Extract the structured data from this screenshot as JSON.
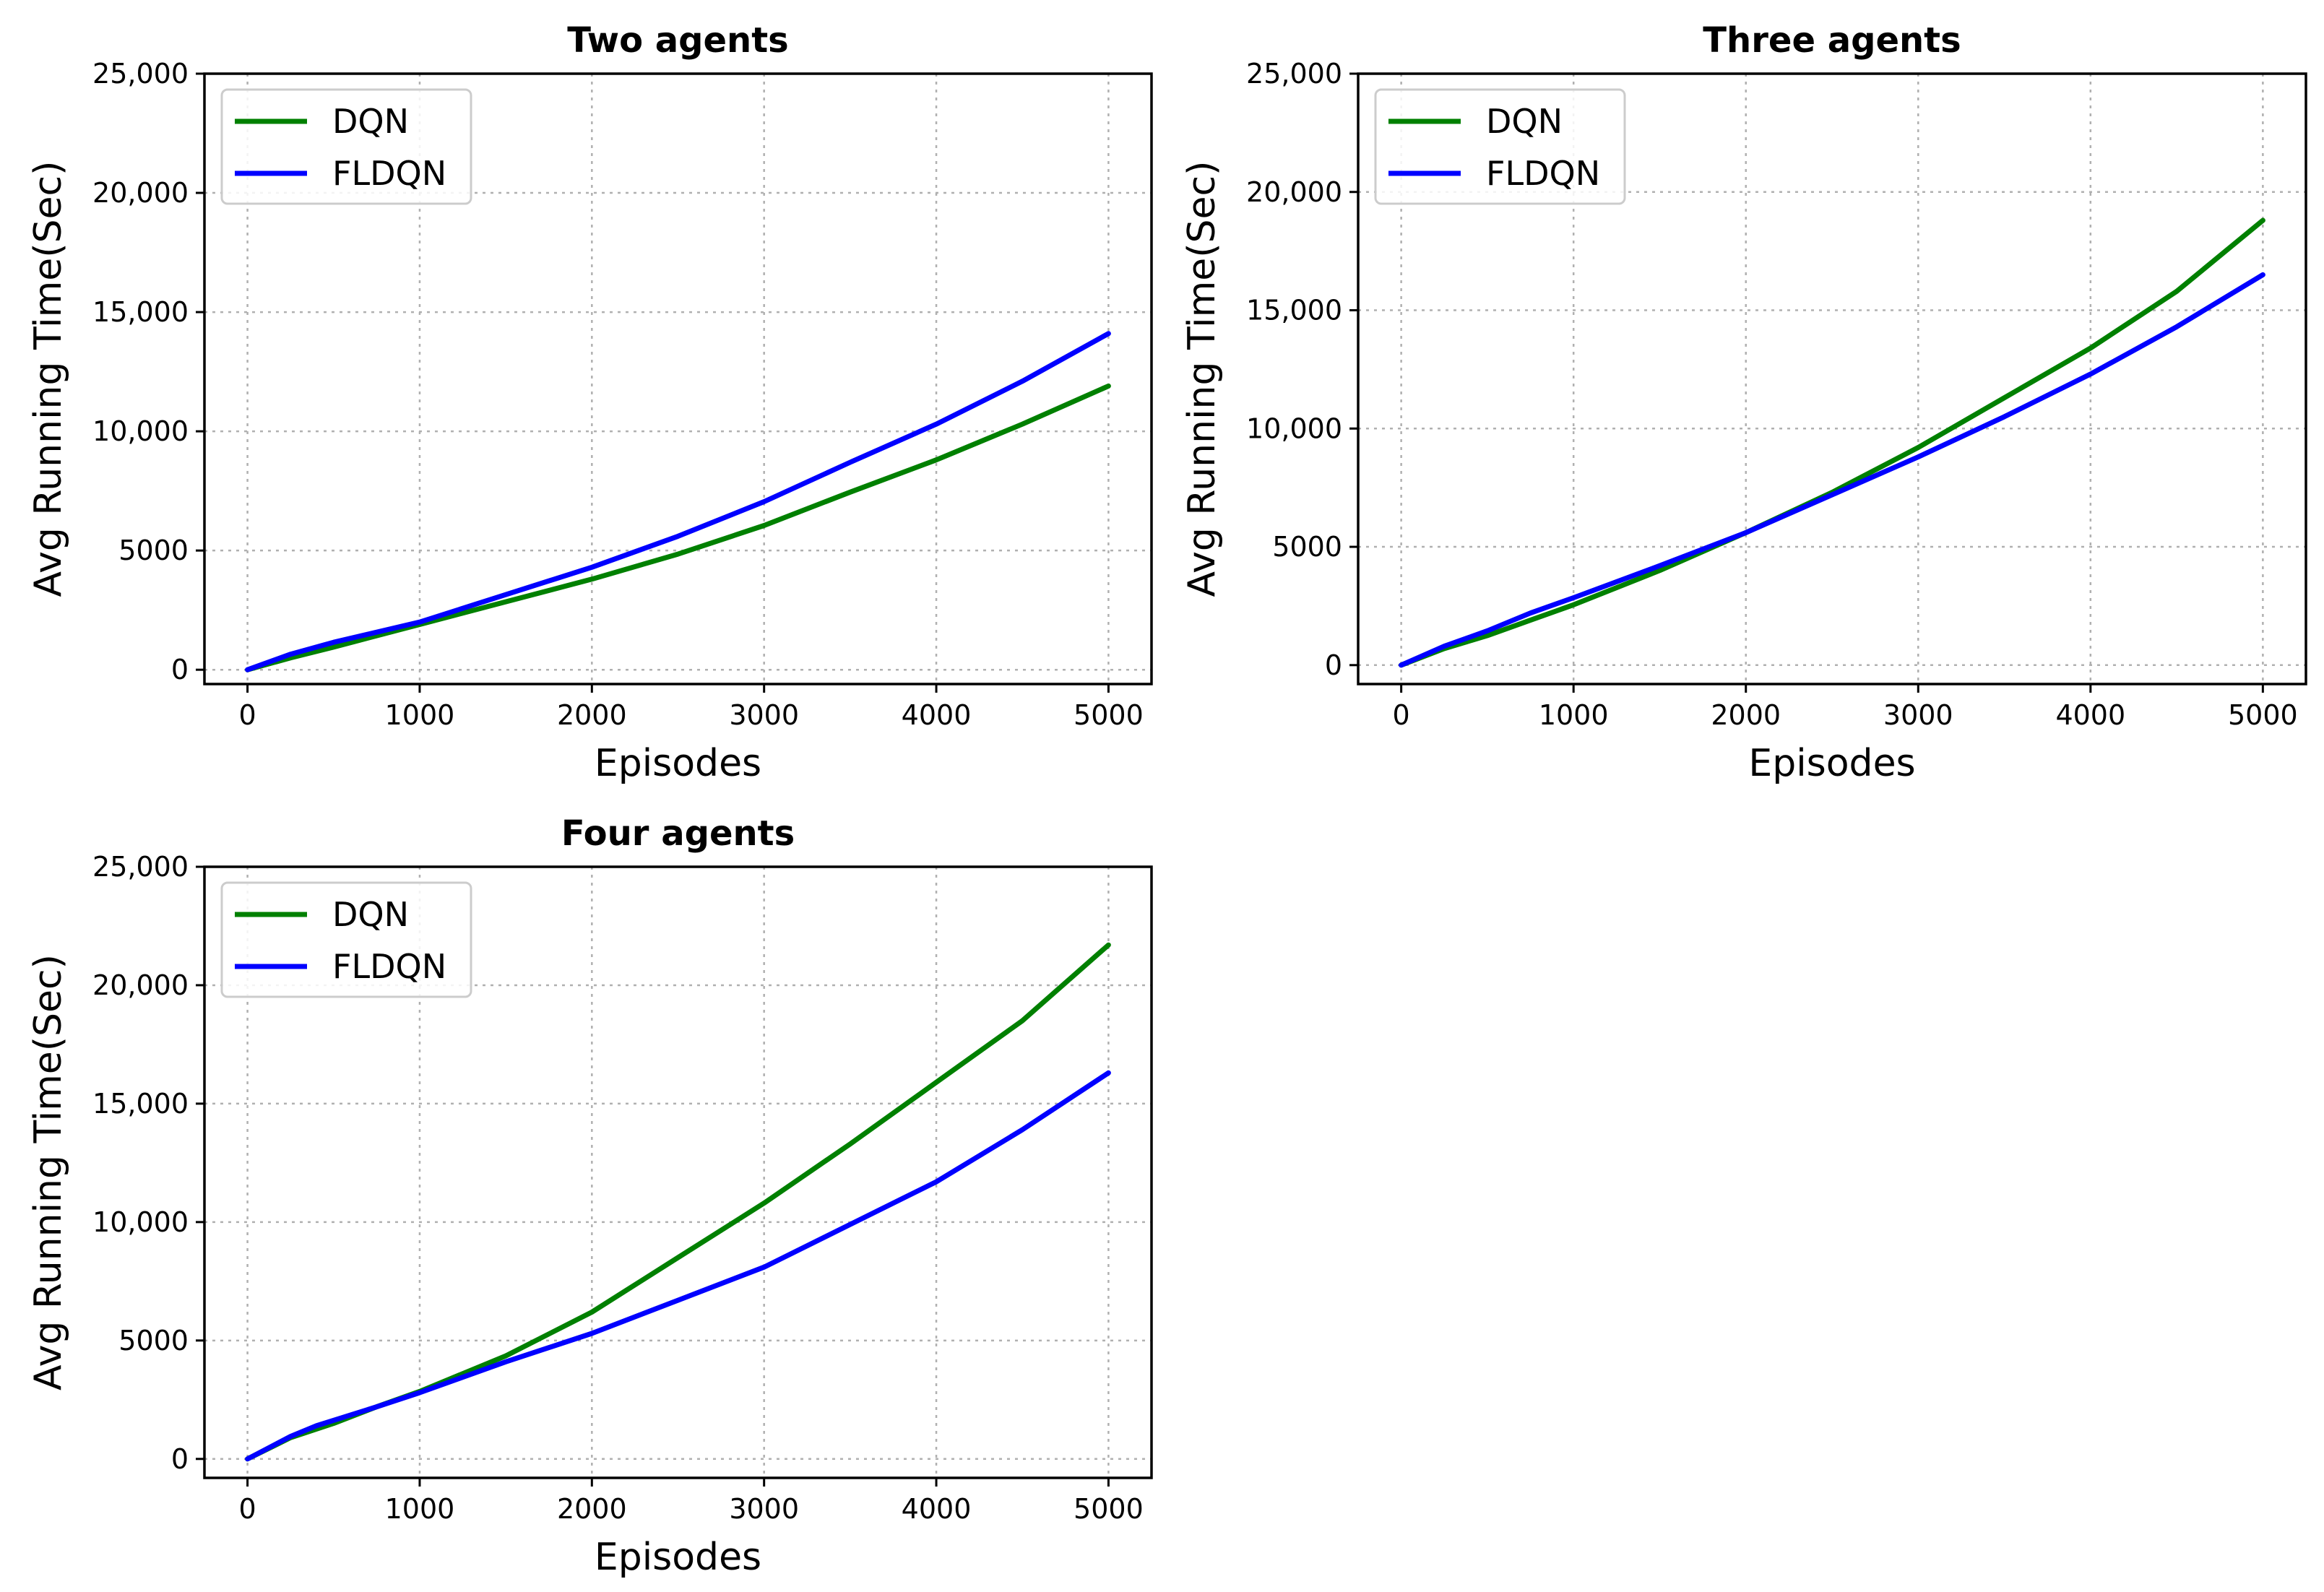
{
  "colors": {
    "DQN": "#008000",
    "FLDQN": "#0000ff"
  },
  "chart_data": [
    {
      "type": "line",
      "title": "Two agents",
      "xlabel": "Episodes",
      "ylabel": "Avg Running Time(Sec)",
      "xlim": [
        -250,
        5250
      ],
      "ylim": [
        -600,
        25000
      ],
      "xticks": [
        0,
        1000,
        2000,
        3000,
        4000,
        5000
      ],
      "xtick_labels": [
        "0",
        "1000",
        "2000",
        "3000",
        "4000",
        "5000"
      ],
      "yticks": [
        0,
        5000,
        10000,
        15000,
        20000,
        25000
      ],
      "ytick_labels": [
        "0",
        "5000",
        "10,000",
        "15,000",
        "20,000",
        "25,000"
      ],
      "grid": true,
      "legend": "top-left",
      "series": [
        {
          "name": "DQN",
          "x": [
            0,
            250,
            500,
            1000,
            1500,
            2000,
            2500,
            3000,
            3500,
            4000,
            4500,
            5000
          ],
          "values": [
            0,
            500,
            950,
            1900,
            2850,
            3800,
            4850,
            6050,
            7450,
            8800,
            10300,
            11900
          ]
        },
        {
          "name": "FLDQN",
          "x": [
            0,
            250,
            500,
            1000,
            1500,
            2000,
            2500,
            3000,
            3500,
            4000,
            4500,
            5000
          ],
          "values": [
            0,
            650,
            1150,
            2000,
            3150,
            4300,
            5600,
            7050,
            8700,
            10300,
            12100,
            14100
          ]
        }
      ]
    },
    {
      "type": "line",
      "title": "Three agents",
      "xlabel": "Episodes",
      "ylabel": "Avg Running Time(Sec)",
      "xlim": [
        -250,
        5250
      ],
      "ylim": [
        -800,
        25000
      ],
      "xticks": [
        0,
        1000,
        2000,
        3000,
        4000,
        5000
      ],
      "xtick_labels": [
        "0",
        "1000",
        "2000",
        "3000",
        "4000",
        "5000"
      ],
      "yticks": [
        0,
        5000,
        10000,
        15000,
        20000,
        25000
      ],
      "ytick_labels": [
        "0",
        "5000",
        "10,000",
        "15,000",
        "20,000",
        "25,000"
      ],
      "grid": true,
      "legend": "top-left",
      "series": [
        {
          "name": "DQN",
          "x": [
            0,
            250,
            500,
            750,
            1000,
            1500,
            2000,
            2500,
            3000,
            3500,
            4000,
            4500,
            5000
          ],
          "values": [
            0,
            700,
            1250,
            1900,
            2550,
            4000,
            5600,
            7300,
            9200,
            11300,
            13400,
            15800,
            18800
          ]
        },
        {
          "name": "FLDQN",
          "x": [
            0,
            250,
            500,
            750,
            1000,
            1500,
            2000,
            2500,
            3000,
            3500,
            4000,
            4500,
            5000
          ],
          "values": [
            0,
            800,
            1450,
            2200,
            2850,
            4200,
            5600,
            7200,
            8800,
            10500,
            12300,
            14300,
            16500
          ]
        }
      ]
    },
    {
      "type": "line",
      "title": "Four agents",
      "xlabel": "Episodes",
      "ylabel": "Avg Running Time(Sec)",
      "xlim": [
        -250,
        5250
      ],
      "ylim": [
        -800,
        25000
      ],
      "xticks": [
        0,
        1000,
        2000,
        3000,
        4000,
        5000
      ],
      "xtick_labels": [
        "0",
        "1000",
        "2000",
        "3000",
        "4000",
        "5000"
      ],
      "yticks": [
        0,
        5000,
        10000,
        15000,
        20000,
        25000
      ],
      "ytick_labels": [
        "0",
        "5000",
        "10,000",
        "15,000",
        "20,000",
        "25,000"
      ],
      "grid": true,
      "legend": "top-left",
      "series": [
        {
          "name": "DQN",
          "x": [
            0,
            250,
            500,
            750,
            1000,
            1500,
            2000,
            2500,
            3000,
            3500,
            4000,
            4500,
            5000
          ],
          "values": [
            0,
            900,
            1500,
            2200,
            2850,
            4350,
            6200,
            8500,
            10800,
            13300,
            15900,
            18500,
            21700
          ]
        },
        {
          "name": "FLDQN",
          "x": [
            0,
            250,
            400,
            750,
            1000,
            1500,
            2000,
            2500,
            3000,
            3500,
            4000,
            4500,
            5000
          ],
          "values": [
            0,
            950,
            1400,
            2200,
            2800,
            4100,
            5300,
            6700,
            8100,
            9900,
            11700,
            13900,
            16300
          ]
        }
      ]
    }
  ]
}
